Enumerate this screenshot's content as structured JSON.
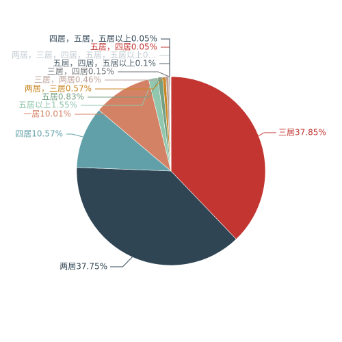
{
  "chart_data": {
    "type": "pie",
    "title": "",
    "slices": [
      {
        "label": "三居",
        "value": 37.85,
        "display": "三居37.85%",
        "color": "#c23531"
      },
      {
        "label": "两居",
        "value": 37.75,
        "display": "两居37.75%",
        "color": "#2f4554"
      },
      {
        "label": "四居",
        "value": 10.57,
        "display": "四居10.57%",
        "color": "#61a0a8"
      },
      {
        "label": "一居",
        "value": 10.01,
        "display": "一居10.01%",
        "color": "#d48265"
      },
      {
        "label": "五居以上",
        "value": 1.55,
        "display": "五居以上1.55%",
        "color": "#91c7ae"
      },
      {
        "label": "五居",
        "value": 0.83,
        "display": "五居0.83%",
        "color": "#749f83"
      },
      {
        "label": "两居，三居",
        "value": 0.57,
        "display": "两居，三居0.57%",
        "color": "#ca8622"
      },
      {
        "label": "三居，两居",
        "value": 0.46,
        "display": "三居，两居0.46%",
        "color": "#bda29a"
      },
      {
        "label": "三居，四居",
        "value": 0.15,
        "display": "三居，四居0.15%",
        "color": "#6e7074"
      },
      {
        "label": "五居，四居，五居以上",
        "value": 0.1,
        "display": "五居，四居，五居以上0.1%",
        "color": "#546570"
      },
      {
        "label": "两居，三居，四居，五居，五居以上0...",
        "value": 0.05,
        "display": "两居，三居，四居，五居，五居以上0...",
        "color": "#c4ccd3"
      },
      {
        "label": "五居，四居",
        "value": 0.05,
        "display": "五居，四居0.05%",
        "color": "#c23531"
      },
      {
        "label": "四居，五居，五居以上",
        "value": 0.05,
        "display": "四居，五居，五居以上0.05%",
        "color": "#2f4554"
      }
    ]
  }
}
